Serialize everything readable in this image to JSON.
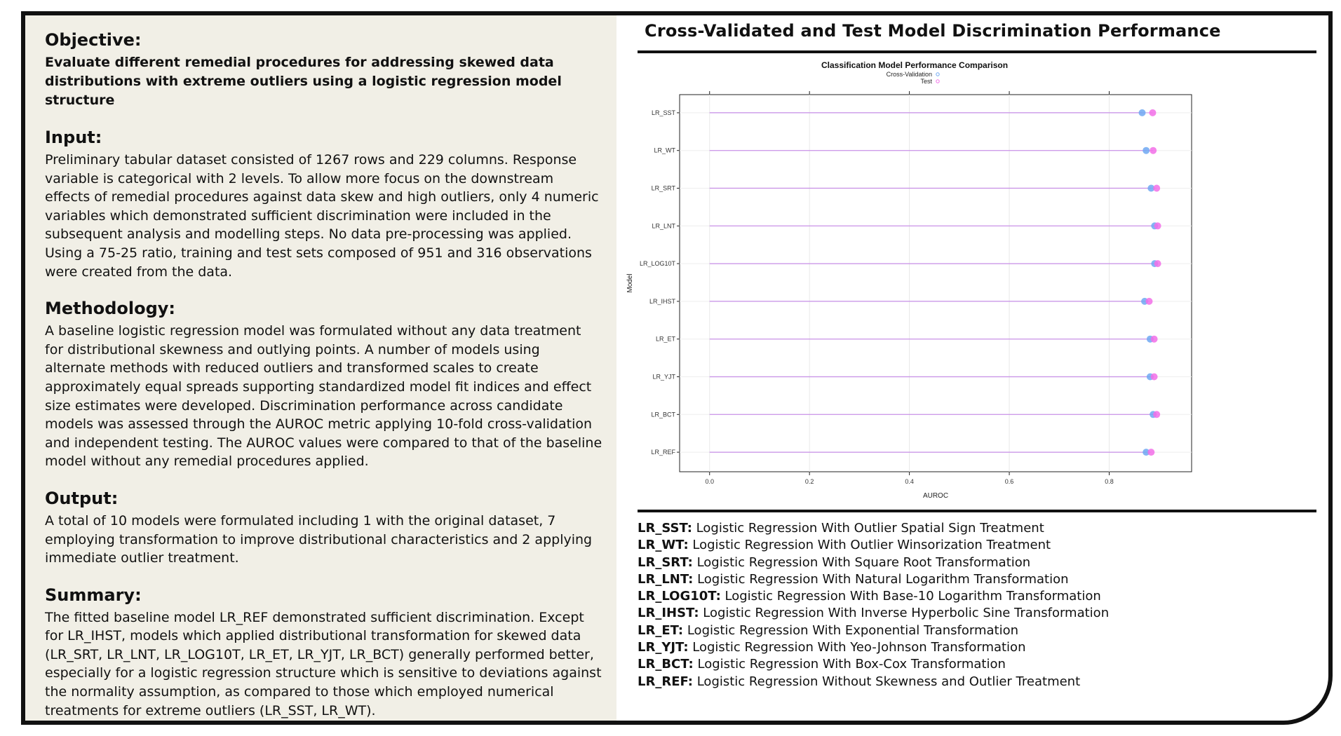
{
  "left": {
    "objective": {
      "title": "Objective:",
      "body": "Evaluate different remedial procedures for addressing skewed data distributions with extreme outliers using a logistic regression model structure"
    },
    "input": {
      "title": "Input:",
      "body": "Preliminary tabular dataset consisted of 1267 rows and 229 columns. Response variable is categorical with 2 levels. To allow more focus on the downstream effects of remedial procedures against data skew and high outliers, only 4 numeric variables which demonstrated sufficient discrimination were included in the subsequent analysis and modelling steps. No data pre-processing was applied. Using a 75-25 ratio, training and test sets composed of 951 and 316 observations were created from the data."
    },
    "methodology": {
      "title": "Methodology:",
      "body": "A baseline logistic regression model was formulated without any data treatment for distributional skewness and outlying points. A number of models using alternate methods with reduced outliers and transformed scales to create approximately equal spreads supporting standardized model fit indices and effect size estimates were developed. Discrimination performance across candidate models was assessed through the AUROC metric applying 10-fold cross-validation and independent testing. The AUROC values were compared to that of the baseline model without any remedial procedures applied."
    },
    "output": {
      "title": "Output:",
      "body": "A total of 10 models were formulated including 1 with the original dataset, 7 employing transformation to improve distributional characteristics and 2 applying immediate outlier treatment."
    },
    "summary": {
      "title": "Summary:",
      "body": "The fitted baseline model LR_REF demonstrated sufficient discrimination. Except for LR_IHST, models which applied distributional transformation for skewed data (LR_SRT, LR_LNT, LR_LOG10T, LR_ET, LR_YJT, LR_BCT) generally performed better, especially for a logistic regression structure which is sensitive to deviations against the normality assumption, as compared to those which employed numerical treatments for extreme outliers (LR_SST, LR_WT)."
    }
  },
  "right": {
    "title": "Cross-Validated and Test Model Discrimination Performance",
    "abbreviations": [
      {
        "key": "LR_SST:",
        "desc": " Logistic Regression With Outlier Spatial Sign Treatment"
      },
      {
        "key": "LR_WT:",
        "desc": " Logistic Regression With Outlier Winsorization Treatment"
      },
      {
        "key": "LR_SRT:",
        "desc": " Logistic Regression With Square Root Transformation"
      },
      {
        "key": "LR_LNT:",
        "desc": " Logistic Regression With Natural Logarithm Transformation"
      },
      {
        "key": "LR_LOG10T:",
        "desc": " Logistic Regression With Base-10 Logarithm Transformation"
      },
      {
        "key": "LR_IHST:",
        "desc": " Logistic Regression With Inverse Hyperbolic Sine Transformation"
      },
      {
        "key": "LR_ET:",
        "desc": " Logistic Regression With Exponential Transformation"
      },
      {
        "key": "LR_YJT:",
        "desc": " Logistic Regression With Yeo-Johnson Transformation"
      },
      {
        "key": "LR_BCT:",
        "desc": " Logistic Regression With Box-Cox Transformation"
      },
      {
        "key": "LR_REF:",
        "desc": " Logistic Regression Without Skewness and Outlier Treatment"
      }
    ]
  },
  "chart_data": {
    "type": "scatter",
    "title": "Classification Model Performance Comparison",
    "xlabel": "AUROC",
    "ylabel": "Model",
    "xlim": [
      -0.06,
      0.965
    ],
    "xticks": [
      "0.0",
      "0.2",
      "0.4",
      "0.6",
      "0.8"
    ],
    "xtick_values": [
      0.0,
      0.2,
      0.4,
      0.6,
      0.8
    ],
    "grid": true,
    "legend_position": "top",
    "categories": [
      "LR_SST",
      "LR_WT",
      "LR_SRT",
      "LR_LNT",
      "LR_LOG10T",
      "LR_IHST",
      "LR_ET",
      "LR_YJT",
      "LR_BCT",
      "LR_REF"
    ],
    "series": [
      {
        "name": "Cross-Validation",
        "color": "#6fa8f2",
        "values": [
          0.866,
          0.874,
          0.884,
          0.891,
          0.891,
          0.871,
          0.882,
          0.882,
          0.888,
          0.874
        ]
      },
      {
        "name": "Test",
        "color": "#f26fe8",
        "values": [
          0.887,
          0.888,
          0.895,
          0.897,
          0.897,
          0.88,
          0.89,
          0.89,
          0.895,
          0.884
        ]
      }
    ],
    "segment_color": "#c88ee8"
  }
}
